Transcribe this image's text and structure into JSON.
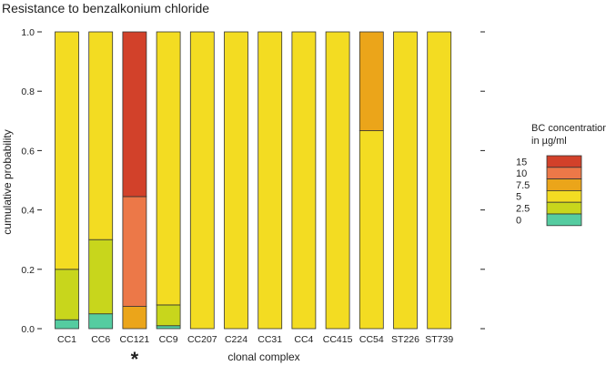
{
  "chart_data": {
    "type": "bar",
    "stacked": true,
    "title": "Resistance to benzalkonium chloride",
    "xlabel": "clonal complex",
    "ylabel": "cumulative probability",
    "ylim": [
      0,
      1
    ],
    "yticks": [
      "0.0",
      "0.2",
      "0.4",
      "0.6",
      "0.8",
      "1.0"
    ],
    "categories": [
      "CC1",
      "CC6",
      "CC121",
      "CC9",
      "CC207",
      "C224",
      "CC31",
      "CC4",
      "CC415",
      "CC54",
      "ST226",
      "ST739"
    ],
    "annotation": {
      "category": "CC121",
      "text": "*"
    },
    "legend": {
      "title_lines": [
        "BC concentration",
        "in µg/ml"
      ],
      "placement": "right"
    },
    "series": [
      {
        "name": "0",
        "color": "#55cca0",
        "values": [
          0.03,
          0.05,
          0,
          0.01,
          0,
          0,
          0,
          0,
          0,
          0,
          0,
          0
        ]
      },
      {
        "name": "2.5",
        "color": "#c8d61c",
        "values": [
          0.17,
          0.25,
          0,
          0.07,
          0,
          0,
          0,
          0,
          0,
          0,
          0,
          0
        ]
      },
      {
        "name": "5",
        "color": "#f3dc22",
        "values": [
          0.8,
          0.7,
          0,
          0.92,
          1,
          1,
          1,
          1,
          1,
          0.667,
          1,
          1
        ]
      },
      {
        "name": "7.5",
        "color": "#eba51a",
        "values": [
          0,
          0,
          0.075,
          0,
          0,
          0,
          0,
          0,
          0,
          0.333,
          0,
          0
        ]
      },
      {
        "name": "10",
        "color": "#ec7848",
        "values": [
          0,
          0,
          0.37,
          0,
          0,
          0,
          0,
          0,
          0,
          0,
          0,
          0
        ]
      },
      {
        "name": "15",
        "color": "#d2412a",
        "values": [
          0,
          0,
          0.555,
          0,
          0,
          0,
          0,
          0,
          0,
          0,
          0,
          0
        ]
      }
    ]
  }
}
